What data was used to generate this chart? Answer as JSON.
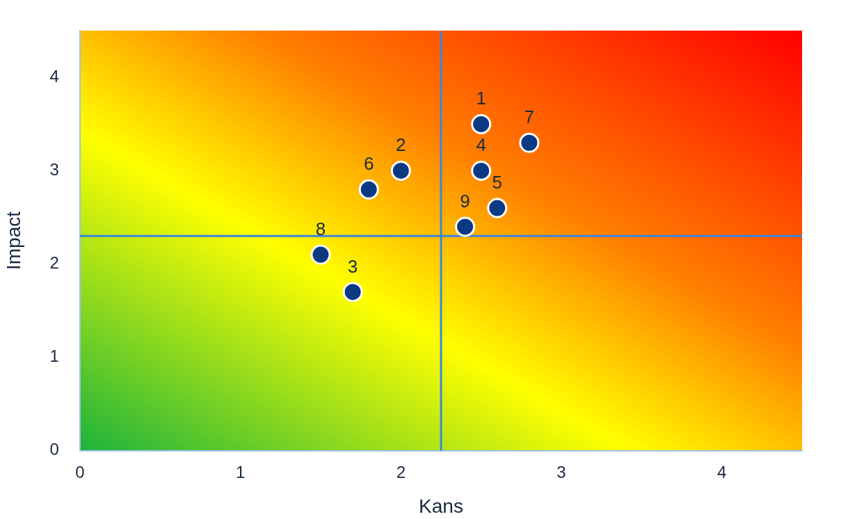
{
  "chart_data": {
    "type": "scatter",
    "xlabel": "Kans",
    "ylabel": "Impact",
    "x": [
      2.5,
      2.8,
      2.0,
      2.5,
      1.8,
      2.6,
      2.4,
      1.5,
      1.7
    ],
    "series": [
      {
        "color": "#0b3a82",
        "values": [
          3.5,
          3.3,
          3.0,
          3.0,
          2.8,
          2.6,
          2.4,
          2.1,
          1.7
        ]
      }
    ],
    "annotations": [
      {
        "text": "1",
        "x": 2.5,
        "y": 3.5
      },
      {
        "text": "7",
        "x": 2.8,
        "y": 3.3
      },
      {
        "text": "2",
        "x": 2.0,
        "y": 3.0
      },
      {
        "text": "4",
        "x": 2.5,
        "y": 3.0
      },
      {
        "text": "6",
        "x": 1.8,
        "y": 2.8
      },
      {
        "text": "5",
        "x": 2.6,
        "y": 2.6
      },
      {
        "text": "9",
        "x": 2.4,
        "y": 2.4
      },
      {
        "text": "8",
        "x": 1.5,
        "y": 2.1
      },
      {
        "text": "3",
        "x": 1.7,
        "y": 1.7
      }
    ],
    "xlim": [
      0,
      4.5
    ],
    "xticks": [
      0,
      1,
      2,
      3,
      4
    ],
    "ylim": [
      0,
      4.5
    ],
    "yticks": [
      0,
      1,
      2,
      3,
      4
    ],
    "ref_lines": [
      {
        "axis": "x",
        "value": 2.25,
        "color": "#3d85e0"
      },
      {
        "axis": "y",
        "value": 2.3,
        "color": "#3d85e0"
      }
    ],
    "grid": false,
    "legend": false,
    "marker": "circle"
  }
}
